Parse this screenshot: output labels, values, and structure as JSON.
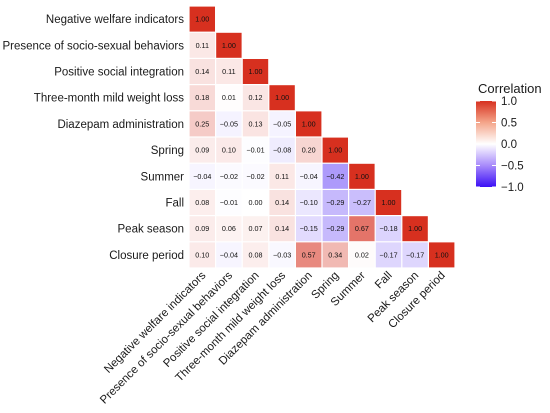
{
  "chart_data": {
    "type": "heatmap",
    "subtype": "lower-triangle correlation matrix",
    "variables": [
      "Negative welfare indicators",
      "Presence of socio-sexual behaviors",
      "Positive social integration",
      "Three-month mild weight loss",
      "Diazepam administration",
      "Spring",
      "Summer",
      "Fall",
      "Peak season",
      "Closure period"
    ],
    "matrix": [
      [
        1.0
      ],
      [
        0.11,
        1.0
      ],
      [
        0.14,
        0.11,
        1.0
      ],
      [
        0.18,
        0.01,
        0.12,
        1.0
      ],
      [
        0.25,
        -0.05,
        0.13,
        -0.05,
        1.0
      ],
      [
        0.09,
        0.1,
        -0.01,
        -0.08,
        0.2,
        1.0
      ],
      [
        -0.04,
        -0.02,
        -0.02,
        0.11,
        -0.04,
        -0.42,
        1.0
      ],
      [
        0.08,
        -0.01,
        0.0,
        0.14,
        -0.1,
        -0.29,
        -0.27,
        1.0
      ],
      [
        0.09,
        0.06,
        0.07,
        0.14,
        -0.15,
        -0.29,
        0.67,
        -0.18,
        1.0
      ],
      [
        0.1,
        -0.04,
        0.08,
        -0.03,
        0.57,
        0.34,
        0.02,
        -0.17,
        -0.17,
        1.0
      ]
    ],
    "legend": {
      "title": "Correlation",
      "ticks": [
        "1.0",
        "0.5",
        "0.0",
        "−0.5",
        "−1.0"
      ],
      "colors": {
        "high": "#d7301f",
        "mid": "#ffffff",
        "low": "#3b0ff5"
      },
      "range": [
        -1,
        1
      ],
      "position": "right"
    },
    "grid": false
  }
}
